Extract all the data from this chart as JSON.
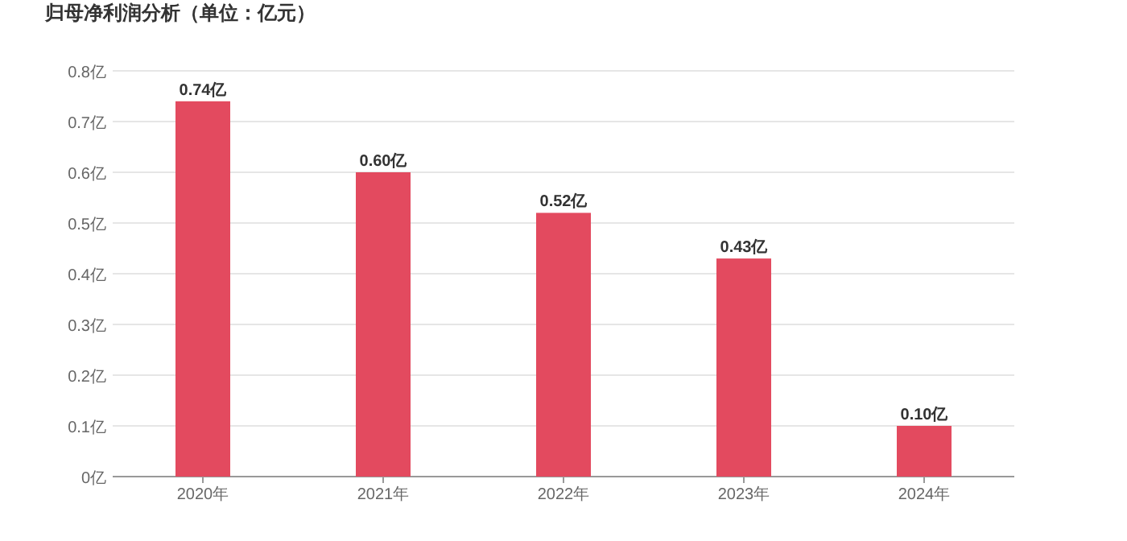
{
  "chart_data": {
    "type": "bar",
    "title": "归母净利润分析（单位：亿元）",
    "categories": [
      "2020年",
      "2021年",
      "2022年",
      "2023年",
      "2024年"
    ],
    "values": [
      0.74,
      0.6,
      0.52,
      0.43,
      0.1
    ],
    "value_labels": [
      "0.74亿",
      "0.60亿",
      "0.52亿",
      "0.43亿",
      "0.10亿"
    ],
    "color": "#e34a5f",
    "ylim": [
      0,
      0.8
    ],
    "yticks": [
      {
        "value": 0,
        "label": "0亿"
      },
      {
        "value": 0.1,
        "label": "0.1亿"
      },
      {
        "value": 0.2,
        "label": "0.2亿"
      },
      {
        "value": 0.3,
        "label": "0.3亿"
      },
      {
        "value": 0.4,
        "label": "0.4亿"
      },
      {
        "value": 0.5,
        "label": "0.5亿"
      },
      {
        "value": 0.6,
        "label": "0.6亿"
      },
      {
        "value": 0.7,
        "label": "0.7亿"
      },
      {
        "value": 0.8,
        "label": "0.8亿"
      }
    ],
    "grid": "y"
  }
}
